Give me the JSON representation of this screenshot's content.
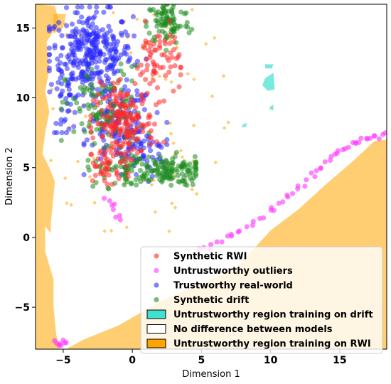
{
  "chart_data": {
    "type": "scatter",
    "xlabel": "Dimension 1",
    "ylabel": "Dimension 2",
    "xlim": [
      -7.0,
      18.4
    ],
    "ylim": [
      -8.0,
      16.7
    ],
    "xticks": [
      -5,
      0,
      5,
      10,
      15
    ],
    "yticks": [
      -5,
      0,
      5,
      10,
      15
    ],
    "xtick_labels": [
      "−5",
      "0",
      "5",
      "10",
      "15"
    ],
    "ytick_labels": [
      "−5",
      "0",
      "5",
      "10",
      "15"
    ],
    "grid": false,
    "legend_position": "lower-right",
    "colors": {
      "rwi": "#ff2a2a",
      "outliers": "#ff33ff",
      "real": "#2929ff",
      "drift": "#1e8c1e",
      "region_drift": "#40e0d0",
      "region_none": "#ffffff",
      "region_rwi": "#ffa500"
    },
    "legend": [
      {
        "kind": "point",
        "series": "rwi",
        "label": "Synthetic RWI"
      },
      {
        "kind": "point",
        "series": "outliers",
        "label": "Untrustworthy outliers"
      },
      {
        "kind": "point",
        "series": "real",
        "label": "Trustworthy real-world"
      },
      {
        "kind": "point",
        "series": "drift",
        "label": "Synthetic drift"
      },
      {
        "kind": "patch",
        "series": "region_drift",
        "label": "Untrustworthy region training on drift"
      },
      {
        "kind": "patch",
        "series": "region_none",
        "label": "No difference between models"
      },
      {
        "kind": "patch",
        "series": "region_rwi",
        "label": "Untrustworthy region training on RWI"
      }
    ],
    "regions": {
      "rwi_left_strip": [
        [
          -7.0,
          16.7
        ],
        [
          -5.6,
          16.6
        ],
        [
          -5.3,
          15.4
        ],
        [
          -6.2,
          14.0
        ],
        [
          -6.0,
          12.0
        ],
        [
          -6.3,
          10.5
        ],
        [
          -6.0,
          9.0
        ],
        [
          -6.3,
          7.5
        ],
        [
          -6.5,
          6.0
        ],
        [
          -6.0,
          5.0
        ],
        [
          -5.6,
          4.0
        ],
        [
          -5.7,
          3.0
        ],
        [
          -5.9,
          1.0
        ],
        [
          -5.9,
          0.3
        ],
        [
          -6.3,
          0.8
        ],
        [
          -6.3,
          -1.0
        ],
        [
          -6.0,
          -2.0
        ],
        [
          -5.7,
          -3.0
        ],
        [
          -5.7,
          -5.0
        ],
        [
          -5.5,
          -7.0
        ],
        [
          -5.2,
          -8.0
        ],
        [
          -7.0,
          -8.0
        ]
      ],
      "rwi_top_left": [
        [
          -5.7,
          16.0
        ],
        [
          -4.8,
          16.0
        ],
        [
          -5.0,
          15.0
        ],
        [
          -5.7,
          14.6
        ]
      ],
      "rwi_bottom_wedge": [
        [
          -4.8,
          -8.0
        ],
        [
          -3.5,
          -7.3
        ],
        [
          -1.0,
          -6.3
        ],
        [
          2.0,
          -4.6
        ],
        [
          5.0,
          -3.3
        ],
        [
          7.5,
          -2.2
        ],
        [
          10.0,
          0.5
        ],
        [
          12.0,
          2.0
        ],
        [
          14.0,
          3.8
        ],
        [
          16.0,
          5.5
        ],
        [
          17.5,
          6.9
        ],
        [
          18.4,
          7.0
        ],
        [
          18.4,
          -8.0
        ]
      ],
      "drift_blobs": [
        [
          [
            9.6,
            12.4
          ],
          [
            10.2,
            12.4
          ],
          [
            10.1,
            12.1
          ],
          [
            9.6,
            12.1
          ]
        ],
        [
          [
            9.6,
            11.4
          ],
          [
            10.2,
            11.8
          ],
          [
            10.3,
            10.6
          ],
          [
            9.8,
            10.5
          ],
          [
            9.4,
            10.9
          ]
        ],
        [
          [
            8.0,
            8.1
          ],
          [
            8.3,
            8.2
          ],
          [
            8.2,
            7.9
          ],
          [
            7.9,
            7.9
          ]
        ],
        [
          [
            10.0,
            9.4
          ],
          [
            10.2,
            9.5
          ],
          [
            10.2,
            9.1
          ],
          [
            9.9,
            9.2
          ]
        ]
      ]
    },
    "series": [
      {
        "key": "real",
        "clusters": [
          {
            "cx": -3.0,
            "cy": 13.2,
            "sx": 1.5,
            "sy": 1.5,
            "n": 330,
            "xr": [
              -6.0,
              1.0
            ],
            "yr": [
              10.2,
              16.5
            ]
          },
          {
            "cx": -1.0,
            "cy": 8.0,
            "sx": 1.2,
            "sy": 1.4,
            "n": 120,
            "xr": [
              -3.5,
              1.8
            ],
            "yr": [
              4.5,
              10.5
            ]
          },
          {
            "cx": -4.8,
            "cy": 9.5,
            "sx": 0.5,
            "sy": 1.0,
            "n": 30,
            "xr": [
              -5.8,
              -3.8
            ],
            "yr": [
              7.5,
              12.0
            ]
          },
          {
            "cx": 0.5,
            "cy": 6.2,
            "sx": 1.1,
            "sy": 1.0,
            "n": 60,
            "xr": [
              -2.5,
              2.5
            ],
            "yr": [
              4.0,
              9.0
            ]
          }
        ]
      },
      {
        "key": "drift",
        "clusters": [
          {
            "cx": 2.6,
            "cy": 15.4,
            "sx": 0.8,
            "sy": 0.8,
            "n": 90,
            "xr": [
              1.0,
              4.3
            ],
            "yr": [
              13.4,
              16.7
            ]
          },
          {
            "cx": 2.3,
            "cy": 4.8,
            "sx": 1.4,
            "sy": 0.55,
            "n": 140,
            "xr": [
              -0.5,
              4.6
            ],
            "yr": [
              3.5,
              6.2
            ]
          },
          {
            "cx": -2.0,
            "cy": 9.0,
            "sx": 1.4,
            "sy": 1.6,
            "n": 110,
            "xr": [
              -5.2,
              1.2
            ],
            "yr": [
              5.0,
              12.5
            ]
          },
          {
            "cx": -1.0,
            "cy": 4.8,
            "sx": 1.2,
            "sy": 0.6,
            "n": 40,
            "xr": [
              -3.2,
              1.0
            ],
            "yr": [
              3.4,
              6.0
            ]
          }
        ]
      },
      {
        "key": "rwi",
        "clusters": [
          {
            "cx": -0.6,
            "cy": 8.2,
            "sx": 1.1,
            "sy": 1.3,
            "n": 190,
            "xr": [
              -3.0,
              2.4
            ],
            "yr": [
              4.5,
              11.5
            ]
          },
          {
            "cx": 1.8,
            "cy": 12.6,
            "sx": 0.8,
            "sy": 1.3,
            "n": 70,
            "xr": [
              0.0,
              3.5
            ],
            "yr": [
              9.5,
              15.5
            ]
          },
          {
            "cx": -1.8,
            "cy": 5.2,
            "sx": 0.9,
            "sy": 0.8,
            "n": 40,
            "xr": [
              -3.5,
              0.2
            ],
            "yr": [
              3.8,
              7.2
            ]
          }
        ]
      }
    ],
    "outlier_tracks": [
      [
        [
          4.8,
          -0.8
        ],
        [
          6.5,
          -0.2
        ],
        [
          8.0,
          0.5
        ],
        [
          9.5,
          1.4
        ],
        [
          10.8,
          2.5
        ],
        [
          12.0,
          3.5
        ],
        [
          13.2,
          4.6
        ],
        [
          14.3,
          5.6
        ],
        [
          15.2,
          6.3
        ],
        [
          16.2,
          6.8
        ],
        [
          17.3,
          7.2
        ],
        [
          18.3,
          7.4
        ]
      ],
      [
        [
          -2.0,
          2.9
        ],
        [
          -1.7,
          2.5
        ],
        [
          -1.3,
          2.0
        ],
        [
          -1.1,
          1.6
        ],
        [
          -1.0,
          1.3
        ]
      ],
      [
        [
          -5.6,
          -7.5
        ],
        [
          -5.2,
          -7.7
        ],
        [
          -4.8,
          -7.6
        ]
      ]
    ],
    "outlier_count": 70
  }
}
